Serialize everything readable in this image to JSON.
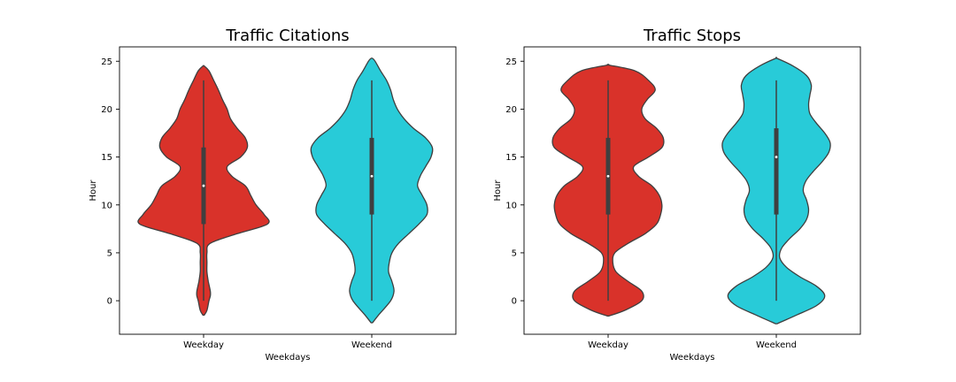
{
  "chart_data": [
    {
      "type": "violin",
      "title": "Traffic Citations",
      "xlabel": "Weekdays",
      "ylabel": "Hour",
      "categories": [
        "Weekday",
        "Weekend"
      ],
      "ylim": [
        -3.5,
        26.5
      ],
      "yticks": [
        0,
        5,
        10,
        15,
        20,
        25
      ],
      "series": [
        {
          "name": "Weekday",
          "color": "#d9322a",
          "quartiles": [
            8,
            12,
            16
          ],
          "whisker": [
            0,
            23
          ],
          "density": [
            [
              -1.5,
              0.01
            ],
            [
              -1,
              0.05
            ],
            [
              0,
              0.08
            ],
            [
              0.5,
              0.1
            ],
            [
              1,
              0.1
            ],
            [
              2,
              0.07
            ],
            [
              3,
              0.05
            ],
            [
              4,
              0.05
            ],
            [
              5,
              0.05
            ],
            [
              6,
              0.1
            ],
            [
              7,
              0.5
            ],
            [
              8,
              0.95
            ],
            [
              9,
              0.9
            ],
            [
              10,
              0.78
            ],
            [
              11,
              0.7
            ],
            [
              12,
              0.62
            ],
            [
              13,
              0.42
            ],
            [
              14,
              0.35
            ],
            [
              15,
              0.55
            ],
            [
              16,
              0.65
            ],
            [
              17,
              0.62
            ],
            [
              18,
              0.5
            ],
            [
              19,
              0.4
            ],
            [
              20,
              0.35
            ],
            [
              21,
              0.28
            ],
            [
              22,
              0.22
            ],
            [
              23,
              0.15
            ],
            [
              24,
              0.08
            ],
            [
              24.5,
              0.01
            ]
          ]
        },
        {
          "name": "Weekend",
          "color": "#28cbd8",
          "quartiles": [
            9,
            13,
            17
          ],
          "whisker": [
            0,
            23
          ],
          "density": [
            [
              -2.3,
              0.01
            ],
            [
              -1.5,
              0.1
            ],
            [
              0,
              0.28
            ],
            [
              1,
              0.33
            ],
            [
              2,
              0.3
            ],
            [
              3,
              0.25
            ],
            [
              4,
              0.26
            ],
            [
              5,
              0.3
            ],
            [
              6,
              0.4
            ],
            [
              7,
              0.55
            ],
            [
              8,
              0.7
            ],
            [
              9,
              0.82
            ],
            [
              10,
              0.82
            ],
            [
              11,
              0.75
            ],
            [
              12,
              0.68
            ],
            [
              13,
              0.72
            ],
            [
              14,
              0.8
            ],
            [
              15,
              0.88
            ],
            [
              16,
              0.9
            ],
            [
              17,
              0.8
            ],
            [
              18,
              0.62
            ],
            [
              19,
              0.48
            ],
            [
              20,
              0.38
            ],
            [
              21,
              0.32
            ],
            [
              22,
              0.28
            ],
            [
              23,
              0.22
            ],
            [
              24,
              0.13
            ],
            [
              25,
              0.05
            ],
            [
              25.3,
              0.01
            ]
          ]
        }
      ]
    },
    {
      "type": "violin",
      "title": "Traffic Stops",
      "xlabel": "Weekdays",
      "ylabel": "Hour",
      "categories": [
        "Weekday",
        "Weekend"
      ],
      "ylim": [
        -3.5,
        26.5
      ],
      "yticks": [
        0,
        5,
        10,
        15,
        20,
        25
      ],
      "series": [
        {
          "name": "Weekday",
          "color": "#d9322a",
          "quartiles": [
            9,
            13,
            17
          ],
          "whisker": [
            0,
            23
          ],
          "density": [
            [
              -1.6,
              0.01
            ],
            [
              -1,
              0.25
            ],
            [
              0,
              0.5
            ],
            [
              1,
              0.5
            ],
            [
              2,
              0.3
            ],
            [
              3,
              0.12
            ],
            [
              4,
              0.07
            ],
            [
              5,
              0.1
            ],
            [
              6,
              0.3
            ],
            [
              7,
              0.55
            ],
            [
              8,
              0.72
            ],
            [
              9,
              0.78
            ],
            [
              10,
              0.8
            ],
            [
              11,
              0.76
            ],
            [
              12,
              0.65
            ],
            [
              13,
              0.45
            ],
            [
              14,
              0.38
            ],
            [
              15,
              0.6
            ],
            [
              16,
              0.8
            ],
            [
              17,
              0.82
            ],
            [
              18,
              0.72
            ],
            [
              19,
              0.55
            ],
            [
              20,
              0.5
            ],
            [
              21,
              0.58
            ],
            [
              22,
              0.7
            ],
            [
              23,
              0.6
            ],
            [
              24,
              0.4
            ],
            [
              24.6,
              0.01
            ]
          ]
        },
        {
          "name": "Weekend",
          "color": "#28cbd8",
          "quartiles": [
            9,
            15,
            18
          ],
          "whisker": [
            0,
            23
          ],
          "density": [
            [
              -2.4,
              0.01
            ],
            [
              -1.5,
              0.3
            ],
            [
              -0.5,
              0.6
            ],
            [
              0.5,
              0.72
            ],
            [
              1.5,
              0.6
            ],
            [
              2.5,
              0.35
            ],
            [
              3.5,
              0.15
            ],
            [
              4.5,
              0.05
            ],
            [
              5.5,
              0.08
            ],
            [
              6.5,
              0.2
            ],
            [
              7.5,
              0.35
            ],
            [
              8.5,
              0.45
            ],
            [
              9.5,
              0.48
            ],
            [
              10.5,
              0.45
            ],
            [
              11.5,
              0.4
            ],
            [
              12.5,
              0.44
            ],
            [
              13.5,
              0.55
            ],
            [
              14.5,
              0.68
            ],
            [
              15.5,
              0.78
            ],
            [
              16.5,
              0.8
            ],
            [
              17.5,
              0.72
            ],
            [
              18.5,
              0.6
            ],
            [
              19.5,
              0.5
            ],
            [
              20.5,
              0.48
            ],
            [
              21.5,
              0.5
            ],
            [
              22.5,
              0.52
            ],
            [
              23.5,
              0.45
            ],
            [
              24.5,
              0.25
            ],
            [
              25.3,
              0.01
            ]
          ]
        }
      ]
    }
  ]
}
